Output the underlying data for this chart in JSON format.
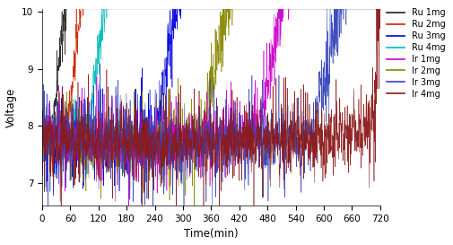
{
  "title": "",
  "xlabel": "Time(min)",
  "ylabel": "Voltage",
  "xlim": [
    0,
    720
  ],
  "ylim": [
    6.6,
    10.05
  ],
  "yticks": [
    7,
    8,
    9,
    10
  ],
  "xticks": [
    0,
    60,
    120,
    180,
    240,
    300,
    360,
    420,
    480,
    540,
    600,
    660,
    720
  ],
  "series": [
    {
      "label": "Ru 1mg",
      "color": "#222222",
      "t_start": 0,
      "t_end": 720,
      "t_fail": 20,
      "base_before": 7.85,
      "base_after": 7.9,
      "noise_before": 0.18,
      "noise_after": 0.22,
      "rise_slope": 0.9,
      "spike_prob": 0.08,
      "spike_amp": 0.3
    },
    {
      "label": "Ru 2mg",
      "color": "#cc2200",
      "t_start": 0,
      "t_end": 720,
      "t_fail": 55,
      "base_before": 7.9,
      "base_after": 8.0,
      "noise_before": 0.18,
      "noise_after": 0.22,
      "rise_slope": 0.95,
      "spike_prob": 0.08,
      "spike_amp": 0.3
    },
    {
      "label": "Ru 4mg",
      "color": "#00bbbb",
      "t_start": 0,
      "t_end": 720,
      "t_fail": 100,
      "base_before": 7.85,
      "base_after": 7.95,
      "noise_before": 0.18,
      "noise_after": 0.22,
      "rise_slope": 0.85,
      "spike_prob": 0.08,
      "spike_amp": 0.25
    },
    {
      "label": "Ru 3mg",
      "color": "#0000dd",
      "t_start": 0,
      "t_end": 720,
      "t_fail": 240,
      "base_before": 7.75,
      "base_after": 7.85,
      "noise_before": 0.22,
      "noise_after": 0.28,
      "rise_slope": 0.6,
      "spike_prob": 0.1,
      "spike_amp": 0.4
    },
    {
      "label": "Ir 2mg",
      "color": "#888800",
      "t_start": 0,
      "t_end": 720,
      "t_fail": 345,
      "base_before": 7.75,
      "base_after": 7.9,
      "noise_before": 0.22,
      "noise_after": 0.28,
      "rise_slope": 0.55,
      "spike_prob": 0.1,
      "spike_amp": 0.4
    },
    {
      "label": "Ir 1mg",
      "color": "#cc00cc",
      "t_start": 0,
      "t_end": 720,
      "t_fail": 460,
      "base_before": 7.8,
      "base_after": 7.95,
      "noise_before": 0.22,
      "noise_after": 0.28,
      "rise_slope": 0.5,
      "spike_prob": 0.1,
      "spike_amp": 0.4
    },
    {
      "label": "Ir 3mg",
      "color": "#3344bb",
      "t_start": 0,
      "t_end": 720,
      "t_fail": 580,
      "base_before": 7.8,
      "base_after": 7.95,
      "noise_before": 0.24,
      "noise_after": 0.32,
      "rise_slope": 0.45,
      "spike_prob": 0.12,
      "spike_amp": 0.45
    },
    {
      "label": "Ir 4mg",
      "color": "#8b1a1a",
      "t_start": 0,
      "t_end": 720,
      "t_fail": 700,
      "base_before": 7.8,
      "base_after": 8.0,
      "noise_before": 0.24,
      "noise_after": 0.35,
      "rise_slope": 0.42,
      "spike_prob": 0.12,
      "spike_amp": 0.45
    }
  ],
  "figsize": [
    5.06,
    2.73
  ],
  "dpi": 100,
  "background_color": "#ffffff",
  "legend_order": [
    "Ru 1mg",
    "Ru 2mg",
    "Ru 3mg",
    "Ru 4mg",
    "Ir 1mg",
    "Ir 2mg",
    "Ir 3mg",
    "Ir 4mg"
  ],
  "legend_colors": [
    "#222222",
    "#cc2200",
    "#0000dd",
    "#00bbbb",
    "#cc00cc",
    "#888800",
    "#3344bb",
    "#8b1a1a"
  ]
}
